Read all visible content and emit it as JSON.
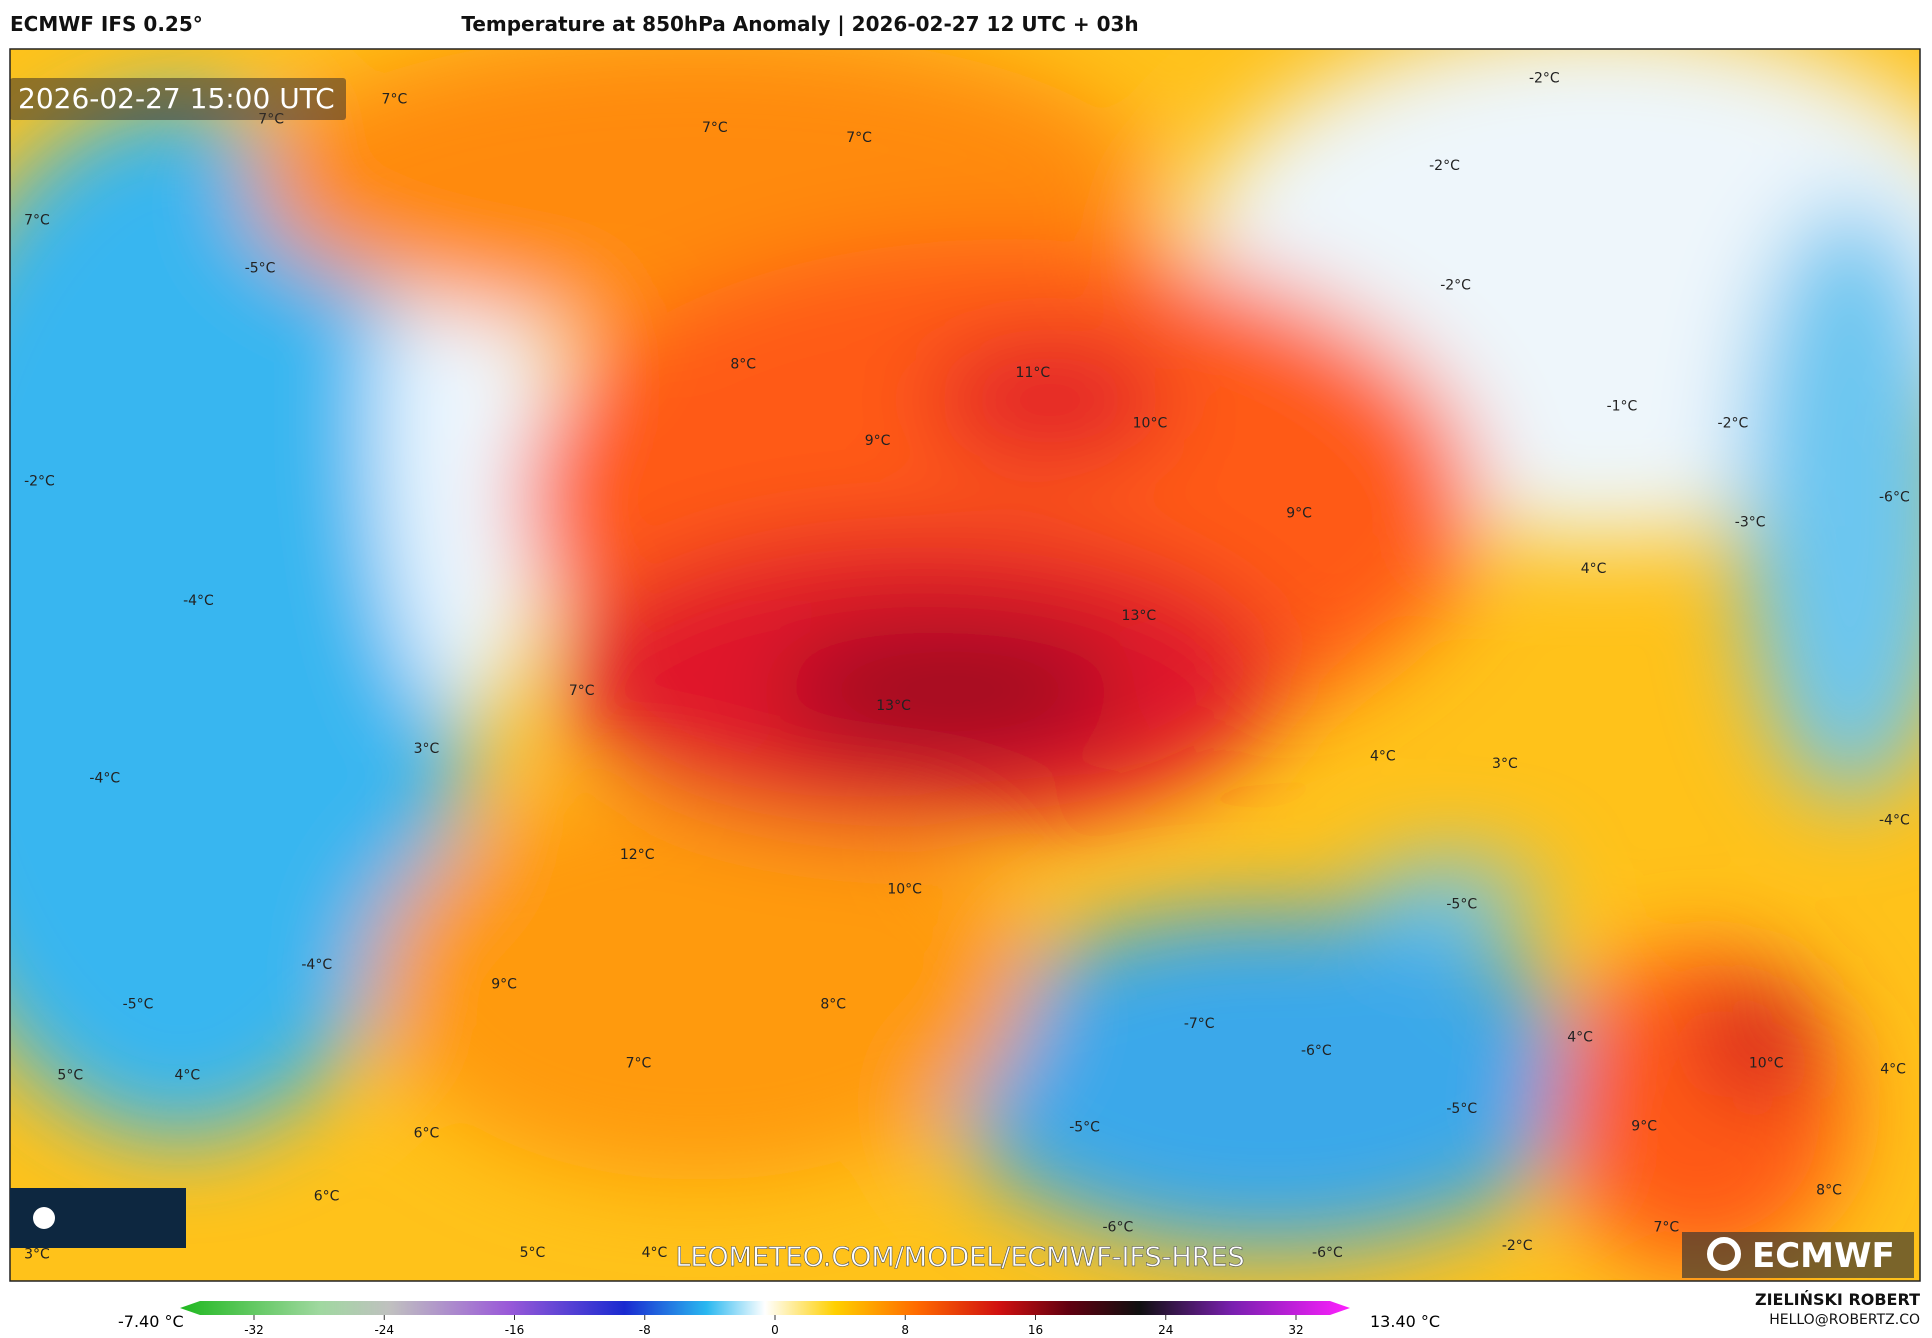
{
  "header": {
    "model": "ECMWF IFS 0.25°",
    "title": "Temperature at 850hPa Anomaly | 2026-02-27 12 UTC + 03h"
  },
  "timestamp": "2026-02-27 15:00 UTC",
  "map_labels": [
    "7°C",
    "7°C",
    "7°C",
    "7°C",
    "7°C",
    "-5°C",
    "8°C",
    "11°C",
    "9°C",
    "10°C",
    "-2°C",
    "-2°C",
    "-2°C",
    "-1°C",
    "-2°C",
    "-2°C",
    "9°C",
    "-3°C",
    "-6°C",
    "4°C",
    "-4°C",
    "13°C",
    "7°C",
    "13°C",
    "3°C",
    "-4°C",
    "4°C",
    "3°C",
    "-4°C",
    "12°C",
    "10°C",
    "-5°C",
    "-4°C",
    "9°C",
    "-5°C",
    "8°C",
    "-7°C",
    "-6°C",
    "4°C",
    "10°C",
    "5°C",
    "4°C",
    "7°C",
    "4°C",
    "-5°C",
    "-5°C",
    "6°C",
    "9°C",
    "6°C",
    "8°C",
    "-6°C",
    "7°C",
    "3°C",
    "5°C",
    "4°C",
    "-6°C",
    "-2°C"
  ],
  "watermark": "LEOMETEO.COM/MODEL/ECMWF-IFS-HRES",
  "logo": "ECMWF",
  "colorbar": {
    "min_label": "-7.40 °C",
    "max_label": "13.40 °C",
    "ticks": [
      -32,
      -24,
      -16,
      -8,
      0,
      8,
      16,
      24,
      32
    ]
  },
  "author": {
    "name": "ZIELIŃSKI ROBERT",
    "contact": "HELLO@ROBERTZ.CO"
  }
}
